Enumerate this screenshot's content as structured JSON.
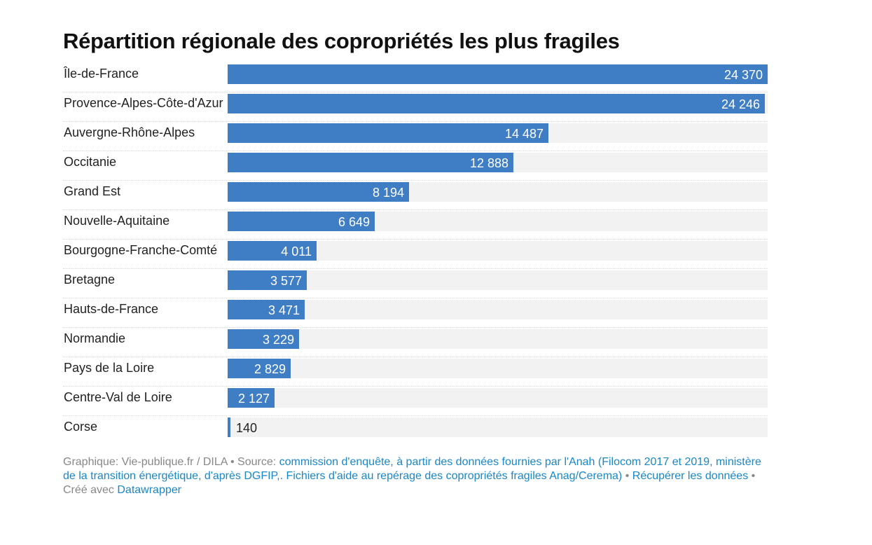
{
  "chart_data": {
    "type": "bar",
    "orientation": "horizontal",
    "title": "Répartition régionale des copropriétés les plus fragiles",
    "categories": [
      "Île-de-France",
      "Provence-Alpes-Côte-d'Azur",
      "Auvergne-Rhône-Alpes",
      "Occitanie",
      "Grand Est",
      "Nouvelle-Aquitaine",
      "Bourgogne-Franche-Comté",
      "Bretagne",
      "Hauts-de-France",
      "Normandie",
      "Pays de la Loire",
      "Centre-Val de Loire",
      "Corse"
    ],
    "values": [
      24370,
      24246,
      14487,
      12888,
      8194,
      6649,
      4011,
      3577,
      3471,
      3229,
      2829,
      2127,
      140
    ],
    "value_labels": [
      "24 370",
      "24 246",
      "14 487",
      "12 888",
      "8 194",
      "6 649",
      "4 011",
      "3 577",
      "3 471",
      "3 229",
      "2 829",
      "2 127",
      "140"
    ],
    "xlim": [
      0,
      24370
    ],
    "grid": false,
    "legend": "none",
    "bar_color": "#3f7ec5",
    "track_color": "#f2f2f2"
  },
  "footer": {
    "graphique": "Graphique: Vie-publique.fr / DILA",
    "sep1": " • ",
    "source_label": "Source: ",
    "source_text": "commission d'enquête, à partir des données fournies par l'Anah (Filocom 2017 et 2019, ministère de la transition énergétique, d'après DGFIP,. Fichiers d'aide au repérage des copropriétés fragiles Anag/Cerema)",
    "sep2": " • ",
    "download": "Récupérer les données",
    "sep3": " • ",
    "created_label": "Créé avec ",
    "datawrapper": "Datawrapper"
  }
}
